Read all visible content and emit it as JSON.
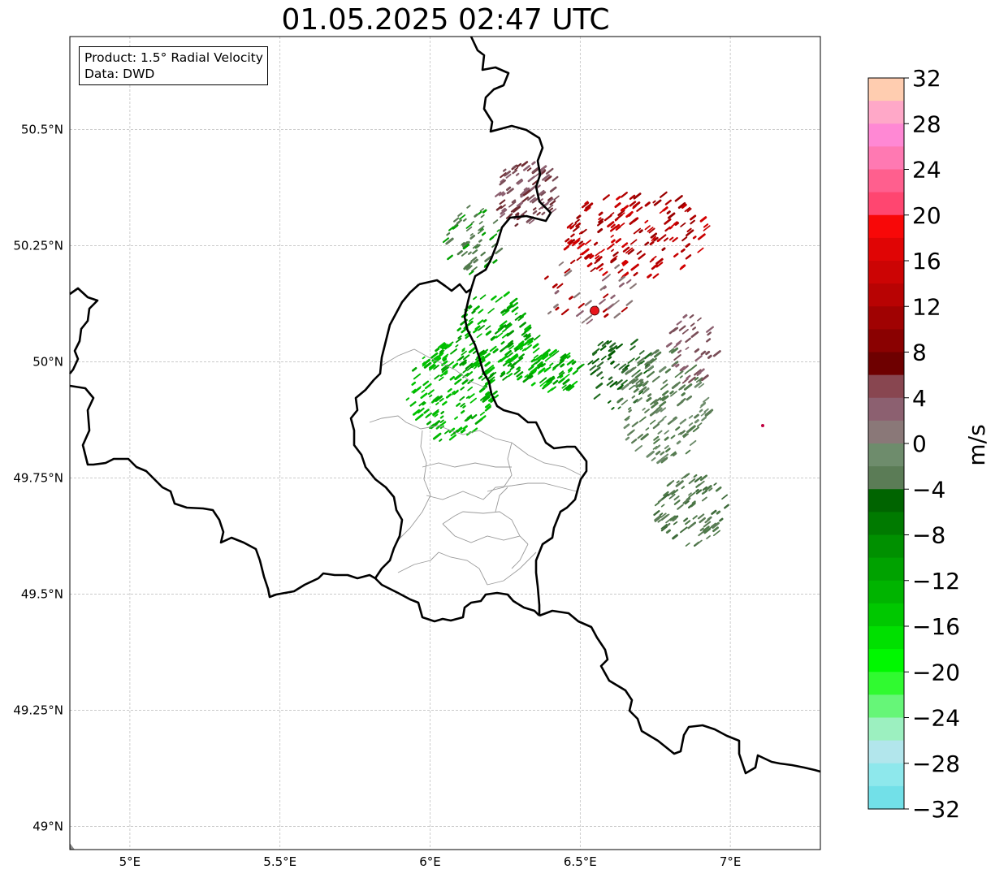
{
  "title": "01.05.2025 02:47 UTC",
  "info_box": {
    "product": "Product: 1.5° Radial Velocity",
    "data": "Data: DWD"
  },
  "map": {
    "lon_range": [
      4.8,
      7.3
    ],
    "lat_range": [
      48.95,
      50.7
    ],
    "x_ticks": [
      {
        "value": 5.0,
        "label": "5°E"
      },
      {
        "value": 5.5,
        "label": "5.5°E"
      },
      {
        "value": 6.0,
        "label": "6°E"
      },
      {
        "value": 6.5,
        "label": "6.5°E"
      },
      {
        "value": 7.0,
        "label": "7°E"
      }
    ],
    "y_ticks": [
      {
        "value": 50.5,
        "label": "50.5°N"
      },
      {
        "value": 50.25,
        "label": "50.25°N"
      },
      {
        "value": 50.0,
        "label": "50°N"
      },
      {
        "value": 49.75,
        "label": "49.75°N"
      },
      {
        "value": 49.5,
        "label": "49.5°N"
      },
      {
        "value": 49.25,
        "label": "49.25°N"
      },
      {
        "value": 49.0,
        "label": "49°N"
      }
    ],
    "gridlines": true,
    "radar_site": {
      "lon": 6.548,
      "lat": 50.11,
      "color": "#e8151b"
    }
  },
  "colorbar": {
    "unit": "m/s",
    "min": -32,
    "max": 32,
    "tick_labels": [
      "32",
      "28",
      "24",
      "20",
      "16",
      "12",
      "8",
      "4",
      "0",
      "−4",
      "−8",
      "−12",
      "−16",
      "−20",
      "−24",
      "−28",
      "−32"
    ],
    "tick_values": [
      32,
      28,
      24,
      20,
      16,
      12,
      8,
      4,
      0,
      -4,
      -8,
      -12,
      -16,
      -20,
      -24,
      -28,
      -32
    ],
    "colors_top_to_bottom": [
      "#ffcdb0",
      "#ffa8c8",
      "#ff88d4",
      "#ff79b2",
      "#ff5f8e",
      "#ff4670",
      "#f80808",
      "#e00505",
      "#cc0404",
      "#b80303",
      "#a00202",
      "#8a0101",
      "#6e0000",
      "#884650",
      "#8c6070",
      "#8a7878",
      "#6e8c6c",
      "#5b7c56",
      "#006400",
      "#007a00",
      "#009000",
      "#00a200",
      "#00b400",
      "#00c800",
      "#00e000",
      "#00f800",
      "#30fa30",
      "#66f678",
      "#9cf0c0",
      "#b2e6ec",
      "#8ee8ec",
      "#72e0e8"
    ]
  }
}
